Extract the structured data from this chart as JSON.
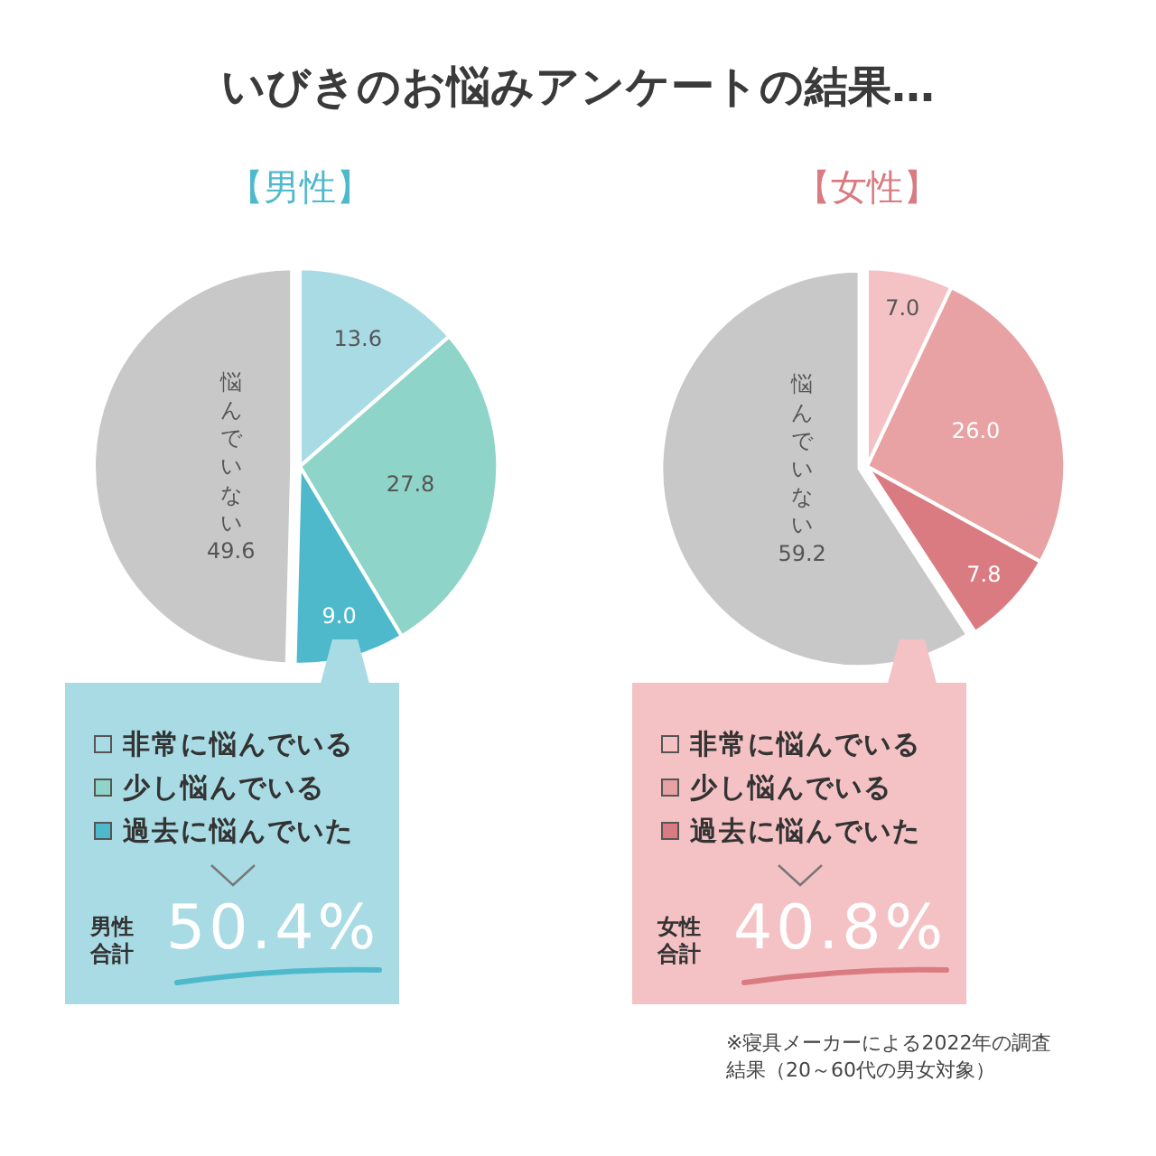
{
  "chart_data": [
    {
      "type": "other",
      "title": "いびきのお悩みアンケートの結果…",
      "annotations": [
        "※寝具メーカーによる2022年の調査結果（20～60代の男女対象）"
      ]
    },
    {
      "type": "pie",
      "title": "【男性】",
      "categories": [
        "非常に悩んでいる",
        "少し悩んでいる",
        "過去に悩んでいた",
        "悩んでいない"
      ],
      "values": [
        13.6,
        27.8,
        9.0,
        49.6
      ],
      "colors": [
        "#a9dbe4",
        "#8fd4c8",
        "#4fb9cc",
        "#c8c8c8"
      ],
      "value_labels": [
        "13.6",
        "27.8",
        "9.0",
        "49.6"
      ],
      "legend": "bottom",
      "annotations": [
        "男性合計",
        "50.4%"
      ]
    },
    {
      "type": "pie",
      "title": "【女性】",
      "categories": [
        "非常に悩んでいる",
        "少し悩んでいる",
        "過去に悩んでいた",
        "悩んでいない"
      ],
      "values": [
        7.0,
        26.0,
        7.8,
        59.2
      ],
      "colors": [
        "#f4c2c5",
        "#e9a2a3",
        "#d97b80",
        "#c8c8c8"
      ],
      "value_labels": [
        "7.0",
        "26.0",
        "7.8",
        "59.2"
      ],
      "legend": "bottom",
      "annotations": [
        "女性合計",
        "40.8%"
      ]
    }
  ]
}
